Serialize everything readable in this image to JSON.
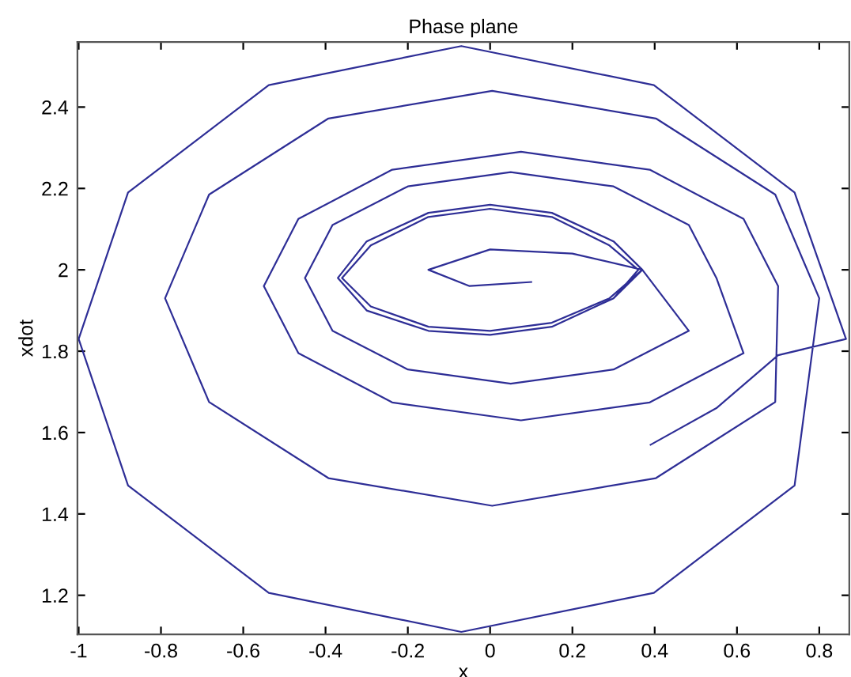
{
  "chart_data": {
    "type": "line",
    "title": "Phase plane",
    "xlabel": "x",
    "ylabel": "xdot",
    "xlim": [
      -1.003,
      0.873
    ],
    "ylim": [
      1.104,
      2.56
    ],
    "xticks": [
      -1,
      -0.8,
      -0.6,
      -0.4,
      -0.2,
      0,
      0.2,
      0.4,
      0.6,
      0.8
    ],
    "yticks": [
      1.2,
      1.4,
      1.6,
      1.8,
      2,
      2.2,
      2.4
    ],
    "grid": false,
    "legend": false,
    "series": [
      {
        "color": "#2e2e96",
        "x": [
          0.39,
          0.55,
          0.7,
          0.865,
          0.74,
          0.398,
          -0.07,
          -0.538,
          -0.88,
          -1.0,
          -0.88,
          -0.538,
          -0.07,
          0.398,
          0.74,
          0.8,
          0.693,
          0.403,
          0.005,
          -0.393,
          -0.683,
          -0.79,
          -0.683,
          -0.393,
          0.005,
          0.403,
          0.693,
          0.7,
          0.616,
          0.388,
          0.075,
          -0.238,
          -0.466,
          -0.55,
          -0.466,
          -0.238,
          0.075,
          0.388,
          0.616,
          0.55,
          0.483,
          0.3,
          0.05,
          -0.2,
          -0.383,
          -0.45,
          -0.383,
          -0.2,
          0.05,
          0.3,
          0.483,
          0.37,
          0.3,
          0.15,
          0,
          -0.15,
          -0.3,
          -0.37,
          -0.3,
          -0.15,
          0,
          0.15,
          0.3,
          0.36,
          0.29,
          0.15,
          0,
          -0.15,
          -0.29,
          -0.36,
          -0.29,
          -0.15,
          0,
          0.15,
          0.29,
          0.37,
          0.3,
          0.15,
          0,
          -0.15,
          -0.3,
          -0.37,
          -0.3,
          -0.15,
          0,
          0.15,
          0.3,
          0.37,
          0.2,
          0,
          -0.15,
          -0.05,
          0.1
        ],
        "values": [
          1.57,
          1.66,
          1.79,
          1.83,
          2.19,
          2.454,
          2.55,
          2.454,
          2.19,
          1.83,
          1.47,
          1.206,
          1.11,
          1.206,
          1.47,
          1.93,
          2.185,
          2.372,
          2.44,
          2.372,
          2.185,
          1.93,
          1.675,
          1.488,
          1.42,
          1.488,
          1.675,
          1.96,
          2.125,
          2.246,
          2.29,
          2.246,
          2.125,
          1.96,
          1.795,
          1.674,
          1.63,
          1.674,
          1.795,
          1.98,
          2.11,
          2.205,
          2.24,
          2.205,
          2.11,
          1.98,
          1.85,
          1.755,
          1.72,
          1.755,
          1.85,
          2.0,
          2.07,
          2.14,
          2.16,
          2.14,
          2.07,
          1.98,
          1.9,
          1.85,
          1.84,
          1.86,
          1.93,
          2.0,
          2.06,
          2.13,
          2.15,
          2.13,
          2.06,
          1.98,
          1.91,
          1.86,
          1.85,
          1.87,
          1.93,
          2.0,
          2.07,
          2.14,
          2.16,
          2.14,
          2.07,
          1.98,
          1.9,
          1.85,
          1.84,
          1.86,
          1.93,
          2.0,
          2.04,
          2.05,
          2.0,
          1.96,
          1.97
        ]
      }
    ]
  }
}
